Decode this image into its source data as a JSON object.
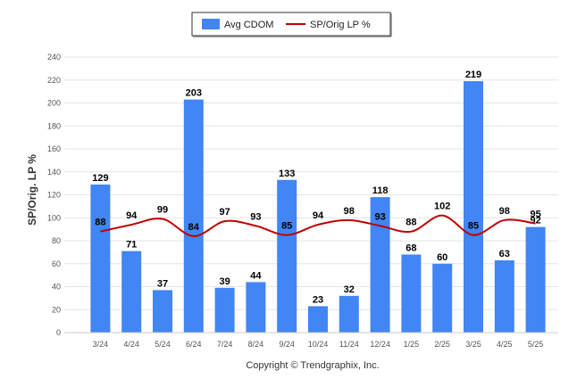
{
  "chart_data": {
    "type": "bar",
    "categories": [
      "3/24",
      "4/24",
      "5/24",
      "6/24",
      "7/24",
      "8/24",
      "9/24",
      "10/24",
      "11/24",
      "12/24",
      "1/25",
      "2/25",
      "3/25",
      "4/25",
      "5/25"
    ],
    "series": [
      {
        "name": "Avg CDOM",
        "type": "bar",
        "color": "#4285F4",
        "values": [
          129,
          71,
          37,
          203,
          39,
          44,
          133,
          23,
          32,
          118,
          68,
          60,
          219,
          63,
          92
        ]
      },
      {
        "name": "SP/Orig LP %",
        "type": "line",
        "color": "#C00000",
        "values": [
          88,
          94,
          99,
          84,
          97,
          93,
          85,
          94,
          98,
          93,
          88,
          102,
          85,
          98,
          95
        ]
      }
    ],
    "ylabel": "SP/Orig. LP %",
    "ylim": [
      0,
      240
    ],
    "yticks": [
      0,
      20,
      40,
      60,
      80,
      100,
      120,
      140,
      160,
      180,
      200,
      220,
      240
    ],
    "grid": true,
    "legend": "top-center"
  },
  "footer": {
    "copyright": "Copyright © Trendgraphix, Inc."
  }
}
